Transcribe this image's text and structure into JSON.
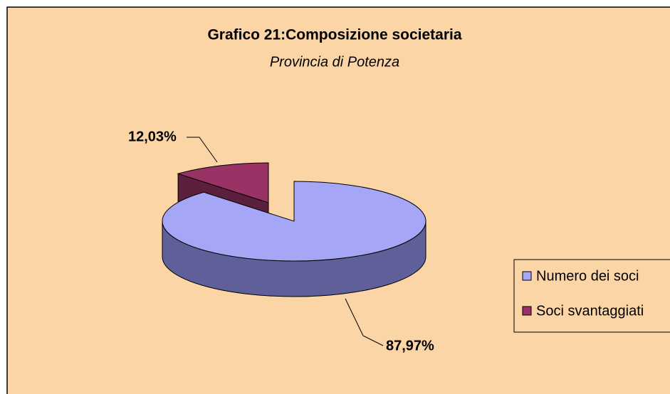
{
  "chart_data": {
    "type": "pie",
    "title": "Grafico 21:Composizione societaria",
    "subtitle": "Provincia di Potenza",
    "categories": [
      "Numero dei soci",
      "Soci svantaggiati"
    ],
    "values": [
      87.97,
      12.03
    ],
    "value_labels": [
      "87,97%",
      "12,03%"
    ],
    "colors": [
      "#a6a6f7",
      "#993366"
    ],
    "side_colors": [
      "#5f5f99",
      "#5c1f3d"
    ],
    "legend": "right"
  }
}
